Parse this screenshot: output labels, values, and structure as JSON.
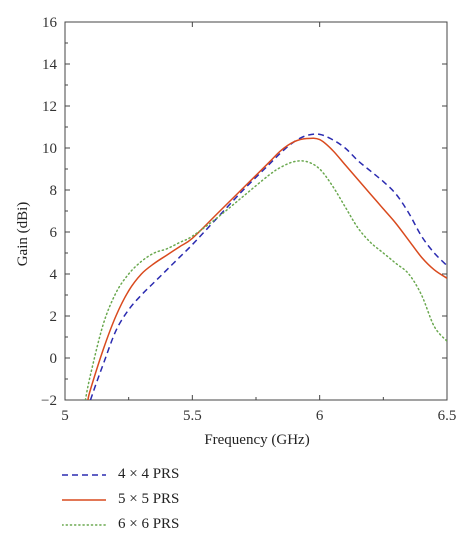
{
  "chart_data": {
    "type": "line",
    "title": "",
    "xlabel": "Frequency (GHz)",
    "ylabel": "Gain (dBi)",
    "xlim": [
      5,
      6.5
    ],
    "ylim": [
      -2,
      16
    ],
    "xticks": [
      "5",
      "5.5",
      "6",
      "6.5"
    ],
    "xtick_values": [
      5,
      5.5,
      6,
      6.5
    ],
    "yticks": [
      "−2",
      "0",
      "2",
      "4",
      "6",
      "8",
      "10",
      "12",
      "14",
      "16"
    ],
    "ytick_values": [
      -2,
      0,
      2,
      4,
      6,
      8,
      10,
      12,
      14,
      16
    ],
    "grid": false,
    "legend_position": "bottom-left, below plot",
    "series": [
      {
        "name": "4 × 4 PRS",
        "color": "#2b2bb0",
        "style": "dashed",
        "x": [
          5.1,
          5.12,
          5.15,
          5.2,
          5.25,
          5.3,
          5.35,
          5.4,
          5.45,
          5.5,
          5.6,
          5.7,
          5.8,
          5.85,
          5.9,
          5.95,
          6.0,
          6.05,
          6.1,
          6.15,
          6.2,
          6.25,
          6.3,
          6.35,
          6.4,
          6.45,
          6.5
        ],
        "y": [
          -2.0,
          -1.3,
          -0.3,
          1.3,
          2.3,
          3.0,
          3.6,
          4.2,
          4.8,
          5.4,
          6.7,
          8.0,
          9.2,
          9.8,
          10.3,
          10.6,
          10.65,
          10.4,
          10.0,
          9.4,
          8.9,
          8.4,
          7.8,
          6.9,
          5.8,
          5.0,
          4.4
        ]
      },
      {
        "name": "5 × 5 PRS",
        "color": "#d94a1e",
        "style": "solid",
        "x": [
          5.09,
          5.1,
          5.15,
          5.2,
          5.25,
          5.3,
          5.35,
          5.4,
          5.45,
          5.5,
          5.6,
          5.7,
          5.8,
          5.85,
          5.9,
          5.95,
          6.0,
          6.05,
          6.1,
          6.15,
          6.2,
          6.25,
          6.3,
          6.35,
          6.4,
          6.45,
          6.5
        ],
        "y": [
          -2.0,
          -1.5,
          0.4,
          2.0,
          3.2,
          4.0,
          4.5,
          4.9,
          5.3,
          5.7,
          6.9,
          8.1,
          9.3,
          9.9,
          10.3,
          10.45,
          10.4,
          9.9,
          9.2,
          8.5,
          7.8,
          7.1,
          6.4,
          5.6,
          4.8,
          4.2,
          3.8
        ]
      },
      {
        "name": "6 × 6 PRS",
        "color": "#6aa84f",
        "style": "dotted",
        "x": [
          5.08,
          5.1,
          5.15,
          5.2,
          5.25,
          5.3,
          5.35,
          5.4,
          5.45,
          5.5,
          5.6,
          5.7,
          5.8,
          5.85,
          5.9,
          5.95,
          6.0,
          6.05,
          6.1,
          6.15,
          6.2,
          6.25,
          6.3,
          6.35,
          6.4,
          6.45,
          6.5
        ],
        "y": [
          -2.0,
          -0.8,
          1.6,
          3.1,
          4.0,
          4.6,
          5.0,
          5.2,
          5.5,
          5.8,
          6.7,
          7.7,
          8.7,
          9.1,
          9.35,
          9.35,
          9.0,
          8.2,
          7.2,
          6.2,
          5.5,
          5.0,
          4.5,
          4.0,
          3.0,
          1.5,
          0.8
        ]
      }
    ]
  }
}
